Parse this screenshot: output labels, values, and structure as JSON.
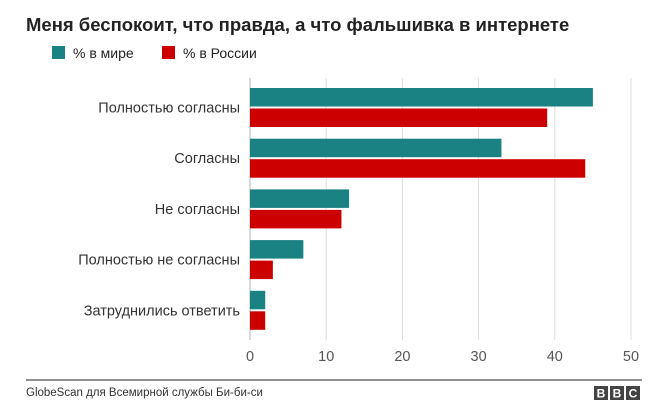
{
  "chart_data": {
    "type": "bar",
    "orientation": "horizontal",
    "title": "Меня беспокоит, что правда, а что фальшивка в интернете",
    "categories": [
      "Полностью согласны",
      "Согласны",
      "Не согласны",
      "Полностью не согласны",
      "Затруднились ответить"
    ],
    "series": [
      {
        "name": "% в мире",
        "color": "#1a8282",
        "values": [
          45,
          33,
          13,
          7,
          2
        ]
      },
      {
        "name": "% в России",
        "color": "#cc0000",
        "values": [
          39,
          44,
          12,
          3,
          2
        ]
      }
    ],
    "xlim": [
      0,
      50
    ],
    "xticks": [
      "0",
      "10",
      "20",
      "30",
      "40",
      "50"
    ],
    "grid": true,
    "legend": "top-left",
    "xlabel": "",
    "ylabel": ""
  },
  "footer": {
    "source": "GlobeScan для Всемирной службы Би-би-си",
    "logo_letters": [
      "B",
      "B",
      "C"
    ]
  }
}
